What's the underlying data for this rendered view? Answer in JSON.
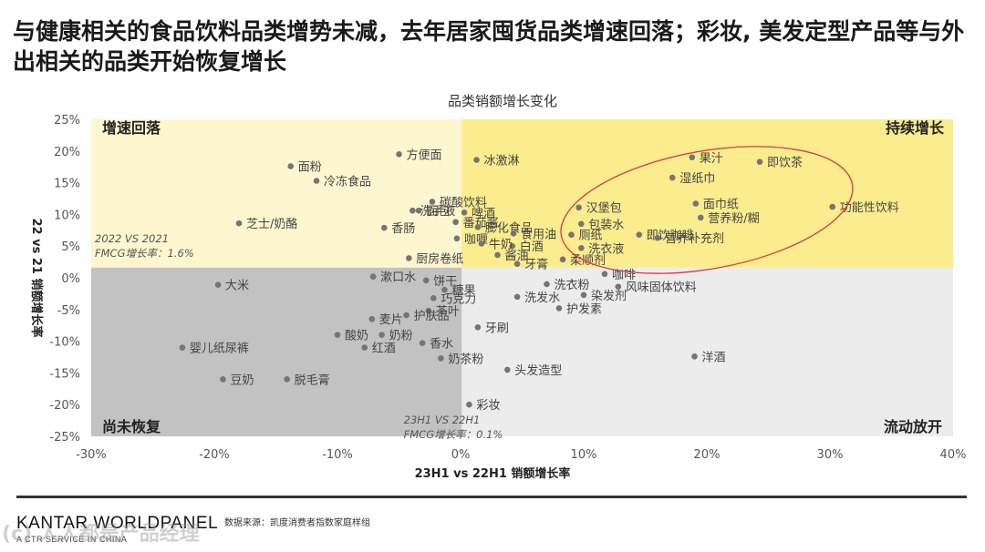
{
  "headline": "与健康相关的食品饮料品类增势未减，去年居家囤货品类增速回落；彩妆, 美发定型产品等与外出相关的品类开始恢复增长",
  "source": "数据来源：凯度消费者指数家庭样组",
  "brand": "KANTAR WORLDPANEL",
  "brand_sub": "A CTR SERVICE IN CHINA",
  "watermark": "(c) 人人都是产品经理",
  "colors": {
    "top_left": "#fdf6cf",
    "top_right": "#fbec8e",
    "bottom_left": "#c2c2c2",
    "bottom_right": "#ececec",
    "point": "#757575",
    "ellipse": "#e0383e"
  },
  "chart_data": {
    "type": "scatter",
    "title": "品类销额增长变化",
    "xlabel": "23H1 vs 22H1 销额增长率",
    "ylabel": "22 vs 21 销额增长率",
    "xlim": [
      -0.3,
      0.4
    ],
    "ylim": [
      -0.25,
      0.25
    ],
    "x_ticks": [
      -0.3,
      -0.2,
      -0.1,
      0.0,
      0.1,
      0.2,
      0.3,
      0.4
    ],
    "x_tick_labels": [
      "-30%",
      "-20%",
      "-10%",
      "0%",
      "10%",
      "20%",
      "30%",
      "40%"
    ],
    "y_ticks": [
      0.25,
      0.2,
      0.15,
      0.1,
      0.05,
      0.0,
      -0.05,
      -0.1,
      -0.15,
      -0.2,
      -0.25
    ],
    "y_tick_labels": [
      "25%",
      "20%",
      "15%",
      "10%",
      "5%",
      "0%",
      "-5%",
      "-10%",
      "-15%",
      "-20%",
      "-25%"
    ],
    "quadrants": {
      "top_left": "增速回落",
      "top_right": "持续增长",
      "bottom_left": "尚未恢复",
      "bottom_right": "流动放开"
    },
    "reference_lines": {
      "x": 0.001,
      "y": 0.016,
      "x_label_1": "23H1 VS 22H1",
      "x_label_2": "FMCG增长率：0.1%",
      "y_label_1": "2022 VS 2021",
      "y_label_2": "FMCG增长率：1.6%"
    },
    "points": [
      {
        "label": "方便面",
        "x": -0.05,
        "y": 0.195
      },
      {
        "label": "冰激淋",
        "x": 0.013,
        "y": 0.186
      },
      {
        "label": "面粉",
        "x": -0.138,
        "y": 0.176
      },
      {
        "label": "冷冻食品",
        "x": -0.117,
        "y": 0.153
      },
      {
        "label": "碳酸饮料",
        "x": -0.023,
        "y": 0.12
      },
      {
        "label": "面包",
        "x": -0.034,
        "y": 0.106
      },
      {
        "label": "洗手液",
        "x": -0.039,
        "y": 0.106
      },
      {
        "label": "啤酒",
        "x": 0.003,
        "y": 0.103
      },
      {
        "label": "番茄酱",
        "x": -0.004,
        "y": 0.088
      },
      {
        "label": "膨化食品",
        "x": 0.014,
        "y": 0.08
      },
      {
        "label": "芝士/奶酪",
        "x": -0.18,
        "y": 0.086
      },
      {
        "label": "香肠",
        "x": -0.062,
        "y": 0.079
      },
      {
        "label": "咖喱",
        "x": -0.003,
        "y": 0.062
      },
      {
        "label": "食用油",
        "x": 0.043,
        "y": 0.07
      },
      {
        "label": "白酒",
        "x": 0.042,
        "y": 0.05
      },
      {
        "label": "牛奶",
        "x": 0.017,
        "y": 0.054
      },
      {
        "label": "厨房卷纸",
        "x": -0.042,
        "y": 0.031
      },
      {
        "label": "酱油",
        "x": 0.03,
        "y": 0.036
      },
      {
        "label": "牙膏",
        "x": 0.046,
        "y": 0.022
      },
      {
        "label": "汉堡包",
        "x": 0.096,
        "y": 0.111
      },
      {
        "label": "包装水",
        "x": 0.098,
        "y": 0.085
      },
      {
        "label": "厕纸",
        "x": 0.09,
        "y": 0.068
      },
      {
        "label": "洗衣液",
        "x": 0.098,
        "y": 0.047
      },
      {
        "label": "柔顺剂",
        "x": 0.083,
        "y": 0.029
      },
      {
        "label": "果汁",
        "x": 0.188,
        "y": 0.19
      },
      {
        "label": "湿纸巾",
        "x": 0.172,
        "y": 0.158
      },
      {
        "label": "即饮茶",
        "x": 0.243,
        "y": 0.183
      },
      {
        "label": "功能性饮料",
        "x": 0.302,
        "y": 0.112
      },
      {
        "label": "面巾纸",
        "x": 0.191,
        "y": 0.117
      },
      {
        "label": "营养粉/糊",
        "x": 0.195,
        "y": 0.095
      },
      {
        "label": "即饮咖啡",
        "x": 0.145,
        "y": 0.068
      },
      {
        "label": "营养补充剂",
        "x": 0.16,
        "y": 0.063
      },
      {
        "label": "咖啡",
        "x": 0.117,
        "y": 0.006
      },
      {
        "label": "风味固体饮料",
        "x": 0.128,
        "y": -0.014
      },
      {
        "label": "染发剂",
        "x": 0.1,
        "y": -0.027
      },
      {
        "label": "护发素",
        "x": 0.08,
        "y": -0.048
      },
      {
        "label": "大米",
        "x": -0.197,
        "y": -0.011
      },
      {
        "label": "漱口水",
        "x": -0.071,
        "y": 0.002
      },
      {
        "label": "饼干",
        "x": -0.028,
        "y": -0.004
      },
      {
        "label": "糖果",
        "x": -0.013,
        "y": -0.019
      },
      {
        "label": "洗衣粉",
        "x": 0.07,
        "y": -0.01
      },
      {
        "label": "巧克力",
        "x": -0.022,
        "y": -0.032
      },
      {
        "label": "洗发水",
        "x": 0.046,
        "y": -0.03
      },
      {
        "label": "茶叶",
        "x": -0.026,
        "y": -0.052
      },
      {
        "label": "护肤品",
        "x": -0.044,
        "y": -0.059
      },
      {
        "label": "麦片",
        "x": -0.072,
        "y": -0.065
      },
      {
        "label": "牙刷",
        "x": 0.014,
        "y": -0.078
      },
      {
        "label": "酸奶",
        "x": -0.1,
        "y": -0.09
      },
      {
        "label": "奶粉",
        "x": -0.064,
        "y": -0.09
      },
      {
        "label": "香水",
        "x": -0.031,
        "y": -0.103
      },
      {
        "label": "红酒",
        "x": -0.078,
        "y": -0.11
      },
      {
        "label": "婴儿纸尿裤",
        "x": -0.226,
        "y": -0.11
      },
      {
        "label": "洋酒",
        "x": 0.19,
        "y": -0.124
      },
      {
        "label": "奶茶粉",
        "x": -0.016,
        "y": -0.127
      },
      {
        "label": "头发造型",
        "x": 0.038,
        "y": -0.145
      },
      {
        "label": "豆奶",
        "x": -0.193,
        "y": -0.16
      },
      {
        "label": "脱毛膏",
        "x": -0.141,
        "y": -0.16
      },
      {
        "label": "彩妆",
        "x": 0.007,
        "y": -0.2
      }
    ],
    "highlight": {
      "cx": 0.2,
      "cy": 0.107,
      "rx": 0.12,
      "ry": 0.093,
      "rotate": -10
    }
  }
}
